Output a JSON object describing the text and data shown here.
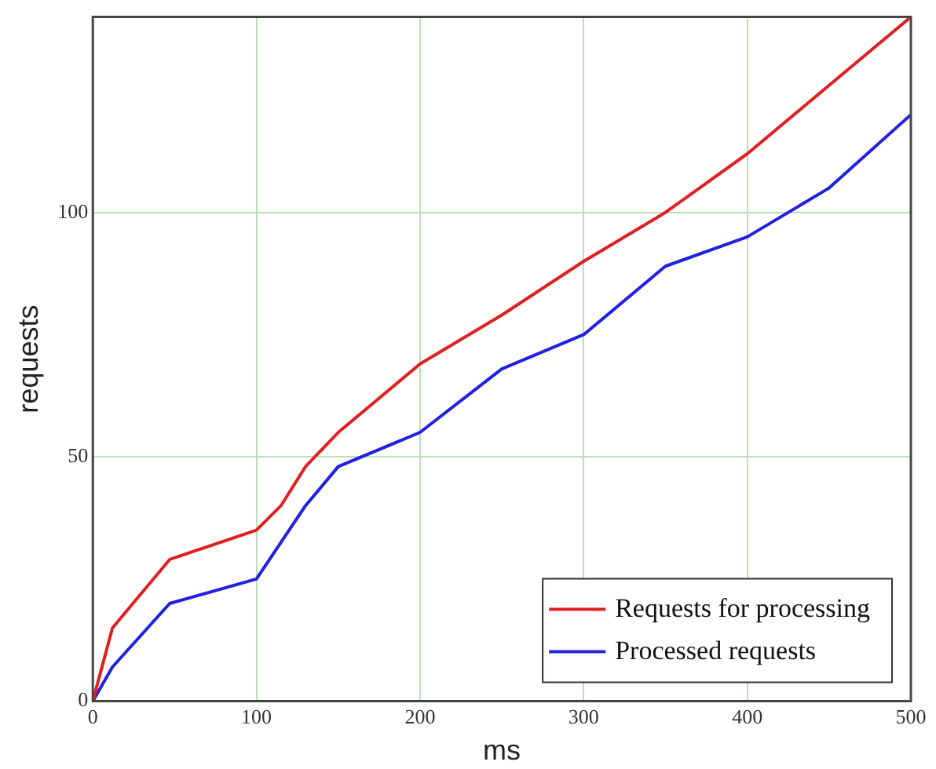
{
  "chart_data": {
    "type": "line",
    "xlabel": "ms",
    "ylabel": "requests",
    "xlim": [
      0,
      500
    ],
    "xticks": [
      0,
      100,
      200,
      300,
      400,
      500
    ],
    "ylim": [
      0,
      140
    ],
    "yticks": [
      0,
      50,
      100
    ],
    "grid": true,
    "legend": "bottom right",
    "marker": "none",
    "line_style": "solid",
    "series": [
      {
        "name": "Requests for processing",
        "color": "#e02020",
        "x": [
          0,
          12,
          47,
          100,
          115,
          130,
          150,
          200,
          250,
          300,
          350,
          400,
          450,
          500
        ],
        "values": [
          0,
          15,
          29,
          35,
          40,
          48,
          55,
          69,
          79,
          90,
          100,
          112,
          126,
          140
        ]
      },
      {
        "name": "Processed requests",
        "color": "#2020e0",
        "x": [
          0,
          12,
          47,
          100,
          130,
          150,
          200,
          250,
          300,
          350,
          400,
          450,
          500
        ],
        "values": [
          0,
          7,
          20,
          25,
          40,
          48,
          55,
          68,
          75,
          89,
          95,
          105,
          120
        ]
      }
    ]
  }
}
